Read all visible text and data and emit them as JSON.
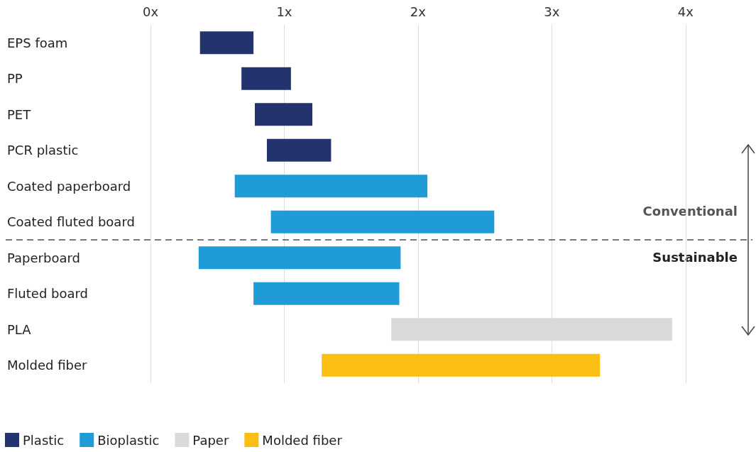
{
  "chart_data": {
    "type": "bar",
    "orientation": "horizontal",
    "categories": [
      "EPS foam",
      "PP",
      "PET",
      "PCR plastic",
      "Coated paperboard",
      "Coated fluted board",
      "Paperboard",
      "Fluted board",
      "PLA",
      "Molded fiber"
    ],
    "series": [
      {
        "name": "Plastic",
        "color": "#22336e",
        "base": [
          0.37,
          0.68,
          0.78,
          0.87,
          null,
          null,
          null,
          null,
          null,
          null
        ],
        "values": [
          0.4,
          0.37,
          0.43,
          0.48,
          null,
          null,
          null,
          null,
          null,
          null
        ]
      },
      {
        "name": "Bioplastic",
        "color": "#1f9bd7",
        "base": [
          null,
          null,
          null,
          null,
          0.63,
          0.9,
          0.36,
          0.77,
          null,
          null
        ],
        "values": [
          null,
          null,
          null,
          null,
          1.44,
          1.67,
          1.51,
          1.09,
          null,
          null
        ]
      },
      {
        "name": "Paper",
        "color": "#dcdad8",
        "base": [
          null,
          null,
          null,
          null,
          null,
          null,
          null,
          null,
          1.8,
          null
        ],
        "values": [
          null,
          null,
          null,
          null,
          null,
          null,
          null,
          null,
          2.1,
          null
        ]
      },
      {
        "name": "Molded fiber",
        "color": "#fbbe14",
        "base": [
          null,
          null,
          null,
          null,
          null,
          null,
          null,
          null,
          null,
          1.28
        ],
        "values": [
          null,
          null,
          null,
          null,
          null,
          null,
          null,
          null,
          null,
          2.08
        ]
      }
    ],
    "xlim": [
      0,
      4.5
    ],
    "xticks": [
      {
        "value": 0,
        "label": "0x"
      },
      {
        "value": 1,
        "label": "1x"
      },
      {
        "value": 2,
        "label": "2x"
      },
      {
        "value": 3,
        "label": "3x"
      },
      {
        "value": 4,
        "label": "4x"
      }
    ],
    "grid": "x",
    "legend": "bottom left",
    "annotations": [
      "Conventional",
      "Sustainable"
    ]
  }
}
